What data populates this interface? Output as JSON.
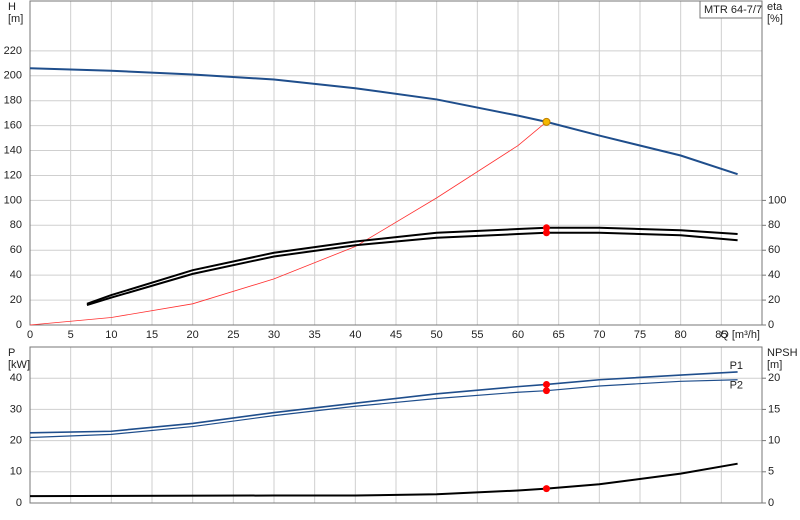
{
  "chart_data": [
    {
      "type": "line",
      "title": "MTR 64-7/7",
      "ylabel": "H",
      "yunit": "[m]",
      "y2label": "eta",
      "y2unit": "[%]",
      "xlabel": "Q [m³/h]",
      "xlim": [
        0,
        90
      ],
      "xticks": [
        0,
        5,
        10,
        15,
        20,
        25,
        30,
        35,
        40,
        45,
        50,
        55,
        60,
        65,
        70,
        75,
        80,
        85
      ],
      "ylim": [
        0,
        260
      ],
      "yticks": [
        0,
        20,
        40,
        60,
        80,
        100,
        120,
        140,
        160,
        180,
        200,
        220
      ],
      "y2lim": [
        0,
        260
      ],
      "y2ticks": [
        0,
        20,
        40,
        60,
        80,
        100
      ],
      "grid": true,
      "series": [
        {
          "color": "#1f4e8c",
          "width": 2,
          "x": [
            0,
            10,
            20,
            30,
            40,
            50,
            60,
            63.5,
            70,
            80,
            87
          ],
          "values": [
            206,
            204,
            201,
            197,
            190,
            181,
            168,
            163,
            152,
            136,
            121
          ]
        },
        {
          "color": "#ff3030",
          "width": 0.8,
          "x": [
            0,
            10,
            20,
            30,
            40,
            50,
            60,
            63.5
          ],
          "values": [
            0,
            6,
            17,
            37,
            63,
            102,
            144,
            163
          ]
        },
        {
          "color": "#000000",
          "width": 2,
          "axis": "y2",
          "x": [
            7,
            10,
            20,
            30,
            40,
            50,
            60,
            63.5,
            70,
            80,
            87
          ],
          "values": [
            17,
            24,
            44,
            58,
            67,
            74,
            77,
            78,
            78,
            76,
            73
          ]
        },
        {
          "color": "#000000",
          "width": 2,
          "axis": "y2",
          "x": [
            7,
            10,
            20,
            30,
            40,
            50,
            60,
            63.5,
            70,
            80,
            87
          ],
          "values": [
            16,
            22,
            41,
            55,
            64,
            70,
            73,
            74,
            74,
            72,
            68
          ]
        }
      ],
      "markers": [
        {
          "x": 63.5,
          "y": 163,
          "color": "#f5b800"
        },
        {
          "x": 63.5,
          "y": 78,
          "axis": "y2",
          "color": "#ff0000"
        },
        {
          "x": 63.5,
          "y": 74,
          "axis": "y2",
          "color": "#ff0000"
        }
      ]
    },
    {
      "type": "line",
      "ylabel": "P",
      "yunit": "[kW]",
      "y2label": "NPSH",
      "y2unit": "[m]",
      "xlim": [
        0,
        90
      ],
      "xticks": [
        0,
        5,
        10,
        15,
        20,
        25,
        30,
        35,
        40,
        45,
        50,
        55,
        60,
        65,
        70,
        75,
        80,
        85
      ],
      "ylim": [
        0,
        50
      ],
      "yticks": [
        0,
        10,
        20,
        30,
        40
      ],
      "y2lim": [
        0,
        25
      ],
      "y2ticks": [
        0,
        5,
        10,
        15,
        20
      ],
      "grid": true,
      "series": [
        {
          "name": "P1",
          "color": "#1f4e8c",
          "width": 1.6,
          "x": [
            0,
            10,
            20,
            30,
            40,
            50,
            60,
            63.5,
            70,
            80,
            87
          ],
          "values": [
            22.5,
            23,
            25.5,
            29,
            32,
            35,
            37.3,
            38,
            39.5,
            41,
            42
          ]
        },
        {
          "name": "P2",
          "color": "#1f4e8c",
          "width": 1.2,
          "x": [
            0,
            10,
            20,
            30,
            40,
            50,
            60,
            63.5,
            70,
            80,
            87
          ],
          "values": [
            21,
            22,
            24.5,
            28,
            31,
            33.5,
            35.5,
            36,
            37.5,
            39,
            39.5
          ]
        },
        {
          "color": "#000000",
          "width": 2,
          "axis": "y2",
          "x": [
            0,
            30,
            40,
            50,
            60,
            63.5,
            70,
            80,
            87
          ],
          "values": [
            1.1,
            1.2,
            1.2,
            1.4,
            2,
            2.3,
            3,
            4.7,
            6.3
          ]
        }
      ],
      "markers": [
        {
          "x": 63.5,
          "y": 38,
          "color": "#ff0000"
        },
        {
          "x": 63.5,
          "y": 36,
          "color": "#ff0000"
        },
        {
          "x": 63.5,
          "y": 2.3,
          "axis": "y2",
          "color": "#ff0000"
        }
      ]
    }
  ]
}
